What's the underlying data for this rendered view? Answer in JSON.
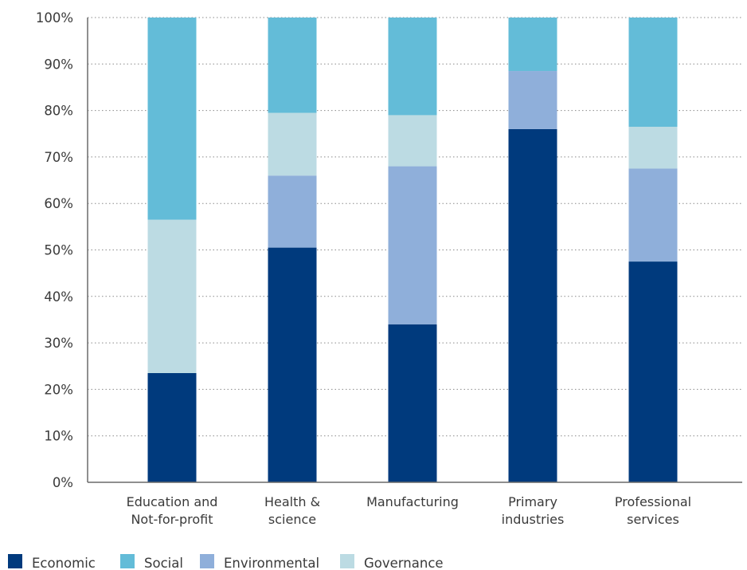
{
  "chart_data": {
    "type": "bar",
    "stacked": true,
    "categories": [
      [
        "Education and",
        "Not-for-profit"
      ],
      [
        "Health &",
        "science"
      ],
      [
        "Manufacturing"
      ],
      [
        "Primary",
        "industries"
      ],
      [
        "Professional",
        "services"
      ]
    ],
    "series": [
      {
        "name": "Economic",
        "color": "#003a7d",
        "values": [
          23.5,
          50.5,
          34,
          76,
          47.5
        ]
      },
      {
        "name": "Environmental",
        "color": "#8fafda",
        "values": [
          0,
          15.5,
          34,
          12.5,
          20
        ]
      },
      {
        "name": "Governance",
        "color": "#bcdbe3",
        "values": [
          33,
          13.5,
          11,
          0,
          9
        ]
      },
      {
        "name": "Social",
        "color": "#63bcd8",
        "values": [
          43.5,
          20.5,
          21,
          11.5,
          23.5
        ]
      }
    ],
    "legend_order": [
      "Economic",
      "Social",
      "Environmental",
      "Governance"
    ],
    "yticks": [
      "0%",
      "10%",
      "20%",
      "30%",
      "40%",
      "50%",
      "60%",
      "70%",
      "80%",
      "90%",
      "100%"
    ],
    "ylim": [
      0,
      100
    ],
    "grid": true,
    "legend_position": "bottom-left",
    "title": "",
    "xlabel": "",
    "ylabel": ""
  }
}
